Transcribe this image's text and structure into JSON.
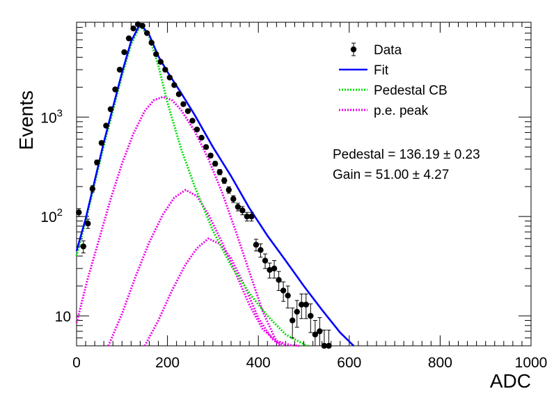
{
  "chart_data": {
    "type": "scatter",
    "xlabel": "ADC",
    "ylabel": "Events",
    "xlim": [
      0,
      1000
    ],
    "ylim": [
      5,
      9000
    ],
    "y_scale": "log",
    "grid": false,
    "legend_placement": "top-right",
    "x_ticks": [
      {
        "value": 0,
        "label": "0"
      },
      {
        "value": 200,
        "label": "200"
      },
      {
        "value": 400,
        "label": "400"
      },
      {
        "value": 600,
        "label": "600"
      },
      {
        "value": 800,
        "label": "800"
      },
      {
        "value": 1000,
        "label": "1000"
      }
    ],
    "y_ticks": [
      {
        "value": 10,
        "label": "10"
      },
      {
        "value": 100,
        "base": "10",
        "exp": "2"
      },
      {
        "value": 1000,
        "base": "10",
        "exp": "3"
      }
    ],
    "colors": {
      "data": "#000000",
      "fit": "#0000ff",
      "pedestal": "#00dd00",
      "pe": "#ee00ee"
    },
    "series": [
      {
        "name": "Data",
        "kind": "points",
        "x": [
          5,
          15,
          25,
          35,
          45,
          55,
          65,
          75,
          85,
          95,
          105,
          115,
          125,
          135,
          145,
          155,
          165,
          175,
          185,
          195,
          205,
          215,
          225,
          235,
          245,
          255,
          265,
          275,
          285,
          295,
          305,
          315,
          325,
          335,
          345,
          355,
          365,
          375,
          385,
          395,
          405,
          415,
          425,
          435,
          445,
          455,
          465,
          475,
          485,
          495,
          505,
          515,
          525,
          535,
          545,
          555,
          565
        ],
        "y": [
          110,
          50,
          85,
          190,
          350,
          550,
          820,
          1200,
          1900,
          3000,
          4500,
          6200,
          7800,
          8600,
          8300,
          7000,
          5600,
          4300,
          3600,
          3000,
          2500,
          2100,
          1700,
          1350,
          1150,
          920,
          750,
          620,
          500,
          410,
          340,
          280,
          230,
          185,
          150,
          125,
          115,
          100,
          100,
          52,
          46,
          36,
          29,
          30,
          23,
          18,
          16,
          9,
          11,
          13,
          13,
          10,
          6.5,
          7,
          5,
          5,
          4.5
        ],
        "yerr": [
          10,
          7,
          9,
          14,
          19,
          23,
          29,
          35,
          44,
          55,
          67,
          79,
          88,
          93,
          91,
          84,
          75,
          66,
          60,
          55,
          50,
          46,
          41,
          37,
          34,
          30,
          27,
          25,
          22,
          20,
          18,
          17,
          15,
          14,
          12,
          11,
          11,
          10,
          10,
          7,
          7,
          6,
          5,
          6,
          5,
          4,
          4,
          3,
          3.3,
          3.6,
          3.6,
          3.2,
          2.5,
          2.6,
          2.2,
          2.2,
          2.1
        ]
      },
      {
        "name": "Fit",
        "kind": "line",
        "x": [
          0,
          20,
          40,
          60,
          80,
          100,
          120,
          140,
          160,
          180,
          200,
          230,
          260,
          300,
          340,
          380,
          420,
          460,
          500,
          540,
          580,
          610
        ],
        "y": [
          45,
          95,
          230,
          560,
          1250,
          2800,
          5800,
          8700,
          6700,
          4100,
          2850,
          1750,
          1050,
          500,
          255,
          122,
          64,
          36,
          20,
          11.5,
          6.8,
          4.9
        ]
      },
      {
        "name": "Pedestal CB",
        "kind": "line",
        "x": [
          0,
          20,
          40,
          60,
          80,
          100,
          120,
          140,
          160,
          180,
          200,
          230,
          260,
          300,
          340,
          380,
          420,
          460,
          500,
          510
        ],
        "y": [
          40,
          90,
          215,
          520,
          1150,
          2600,
          5400,
          8300,
          6400,
          3300,
          1400,
          480,
          200,
          72,
          32,
          17,
          10,
          6.5,
          5.2,
          4.9
        ]
      },
      {
        "name": "p.e. peak",
        "kind": "line",
        "x": [
          0,
          25,
          50,
          75,
          100,
          125,
          150,
          170,
          190,
          210,
          230,
          260,
          290,
          320,
          350,
          380,
          410,
          440,
          460
        ],
        "y": [
          8.5,
          24,
          60,
          150,
          340,
          680,
          1150,
          1480,
          1600,
          1480,
          1180,
          720,
          380,
          175,
          72,
          28,
          11,
          5.5,
          4.8
        ]
      },
      {
        "name": "",
        "kind": "line",
        "x": [
          70,
          100,
          130,
          160,
          190,
          215,
          240,
          265,
          290,
          320,
          350,
          380,
          410,
          440,
          470,
          490
        ],
        "y": [
          4.9,
          10.5,
          25,
          55,
          105,
          155,
          185,
          160,
          105,
          55,
          27,
          13,
          7.3,
          5.6,
          5.1,
          4.9
        ]
      },
      {
        "name": "",
        "kind": "line",
        "x": [
          150,
          180,
          210,
          240,
          265,
          290,
          315,
          340,
          370,
          400,
          430,
          450
        ],
        "y": [
          4.9,
          9,
          18,
          33,
          48,
          60,
          53,
          38,
          20,
          9.5,
          5.9,
          4.9
        ]
      }
    ],
    "annotations": [
      {
        "label": "Pedestal = 136.19",
        "pm": "±",
        "err": "0.23"
      },
      {
        "label": "Gain = 51.00",
        "pm": "±",
        "err": "4.27"
      }
    ]
  }
}
